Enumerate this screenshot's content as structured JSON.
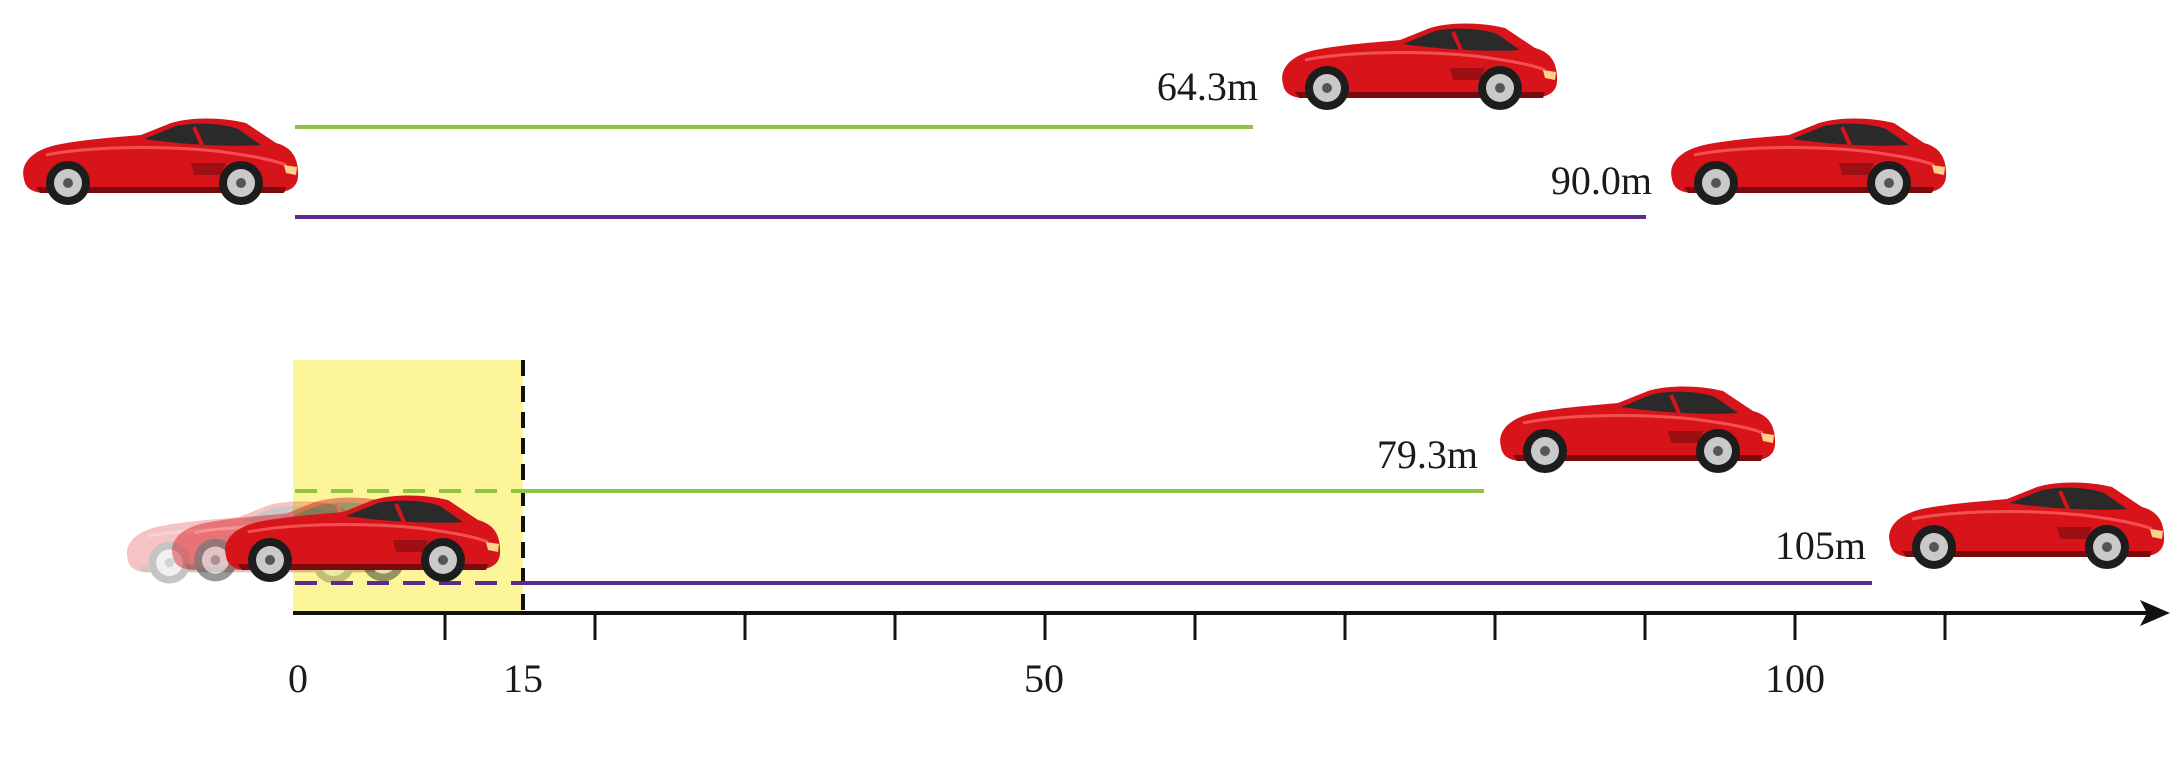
{
  "colors": {
    "green": "#8cc63f",
    "purple": "#5b2c8e",
    "highlight": "#fdf59a",
    "axis": "#111111",
    "car_body": "#d8141b"
  },
  "top_scenario": {
    "green_label": "64.3m",
    "purple_label": "90.0m"
  },
  "bottom_scenario": {
    "green_label": "79.3m",
    "purple_label": "105m"
  },
  "axis": {
    "tick_labels": [
      "0",
      "15",
      "50",
      "100"
    ],
    "arrow": "right-arrow"
  }
}
